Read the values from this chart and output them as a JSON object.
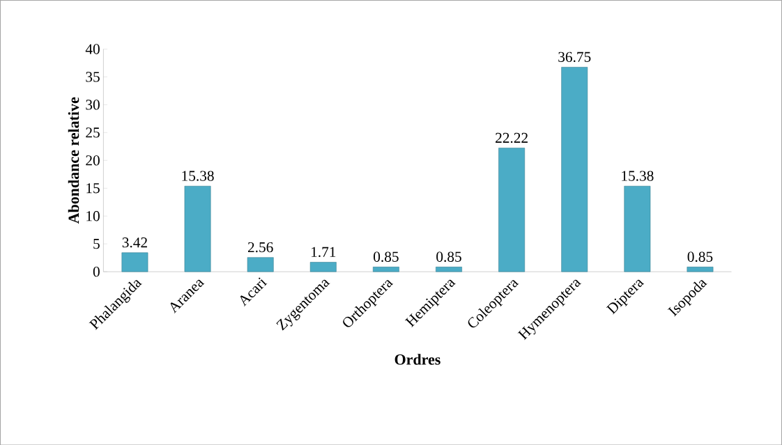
{
  "chart_data": {
    "type": "bar",
    "xlabel": "Ordres",
    "ylabel": "Abondance relative",
    "categories": [
      "Phalangida",
      "Aranea",
      "Acari",
      "Zygentoma",
      "Orthoptera",
      "Hemiptera",
      "Coleoptera",
      "Hymenoptera",
      "Diptera",
      "Isopoda"
    ],
    "values": [
      3.42,
      15.38,
      2.56,
      1.71,
      0.85,
      0.85,
      22.22,
      36.75,
      15.38,
      0.85
    ],
    "color": "#4bacc6",
    "ylim": [
      0,
      40
    ],
    "yticks": [
      0,
      5,
      10,
      15,
      20,
      25,
      30,
      35,
      40
    ],
    "data_labels": true
  }
}
